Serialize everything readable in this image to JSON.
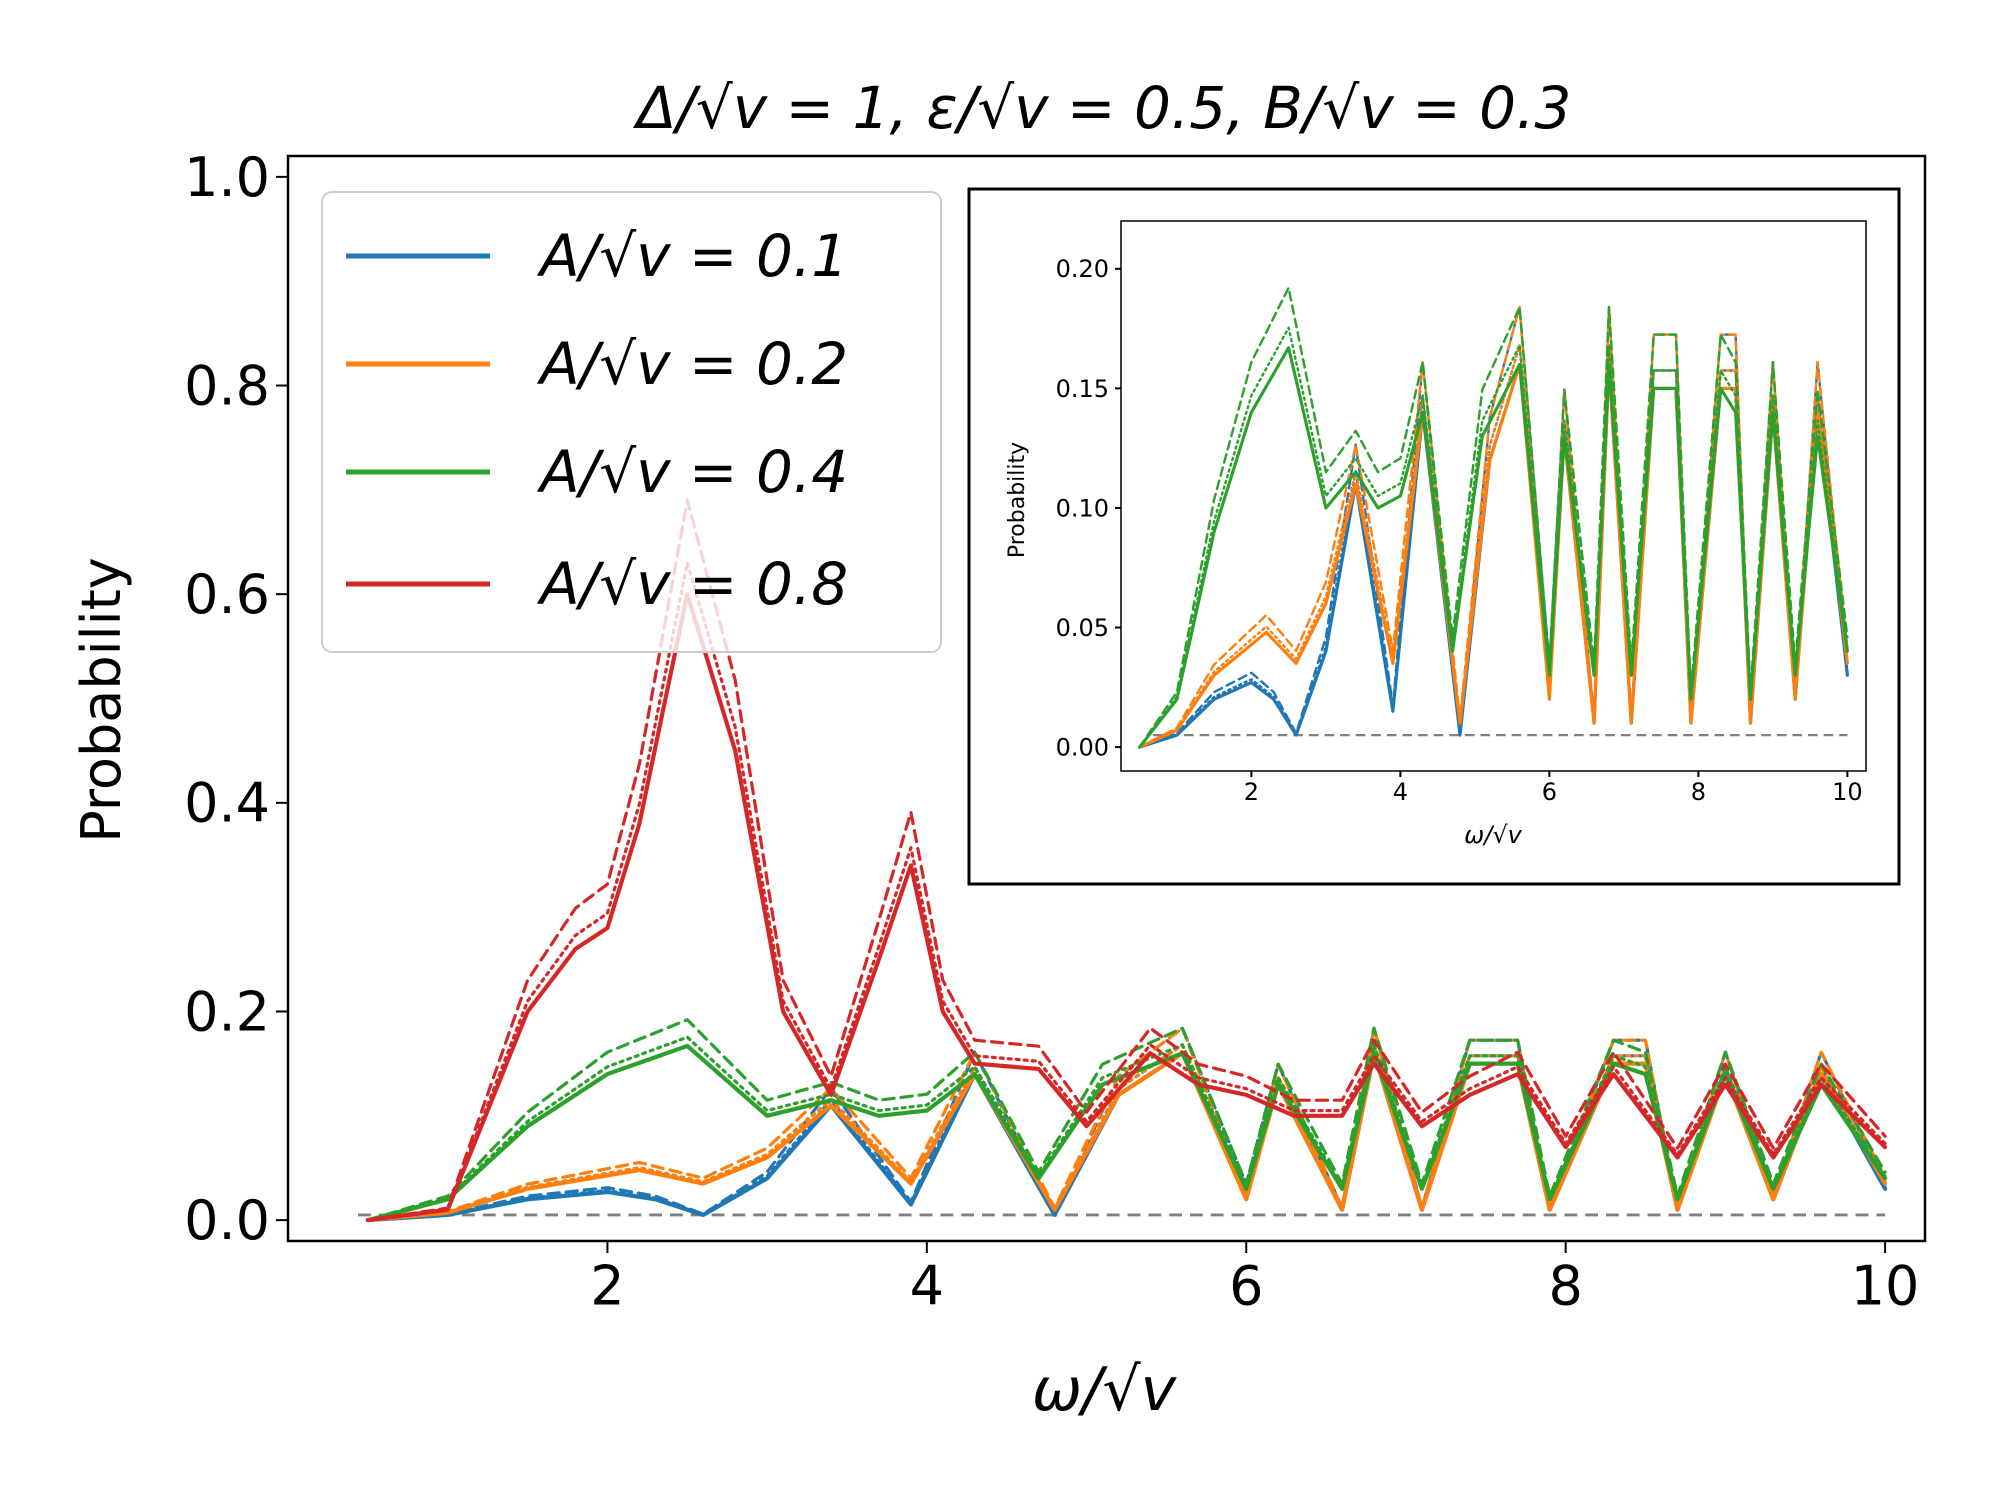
{
  "chart_data": {
    "type": "line",
    "title": "Δ/√v = 1, ε/√v = 0.5, B/√v = 0.3",
    "xlabel": "ω/√v",
    "ylabel": "Probability",
    "xlim": [
      0,
      10.25
    ],
    "ylim": [
      -0.02,
      1.02
    ],
    "xticks": [
      2,
      4,
      6,
      8,
      10
    ],
    "yticks": [
      0.0,
      0.2,
      0.4,
      0.6,
      0.8,
      1.0
    ],
    "ytick_labels": [
      "0.0",
      "0.2",
      "0.4",
      "0.6",
      "0.8",
      "1.0"
    ],
    "legend": {
      "placement": "upper-left",
      "entries": [
        {
          "label": "A/√v = 0.1",
          "color": "#1f77b4"
        },
        {
          "label": "A/√v = 0.2",
          "color": "#ff7f0e"
        },
        {
          "label": "A/√v = 0.4",
          "color": "#2ca02c"
        },
        {
          "label": "A/√v = 0.8",
          "color": "#d62728"
        }
      ]
    },
    "line_styles": [
      "solid",
      "dashed",
      "dotted"
    ],
    "series": [
      {
        "name": "A/√v = 0.1",
        "color": "#1f77b4",
        "style": "solid",
        "x": [
          0.5,
          1.0,
          1.5,
          2.0,
          2.3,
          2.6,
          3.0,
          3.4,
          3.9,
          4.3,
          4.8,
          5.2,
          5.6,
          6.0,
          6.2,
          6.6,
          6.8,
          7.1,
          7.4,
          7.7,
          7.9,
          8.3,
          8.5,
          8.7,
          9.0,
          9.3,
          9.6,
          10.0
        ],
        "y": [
          0.0,
          0.005,
          0.02,
          0.027,
          0.02,
          0.005,
          0.04,
          0.11,
          0.015,
          0.14,
          0.005,
          0.12,
          0.16,
          0.03,
          0.13,
          0.01,
          0.16,
          0.01,
          0.15,
          0.15,
          0.01,
          0.15,
          0.15,
          0.01,
          0.14,
          0.02,
          0.14,
          0.03
        ]
      },
      {
        "name": "A/√v = 0.2",
        "color": "#ff7f0e",
        "style": "solid",
        "x": [
          0.5,
          1.0,
          1.5,
          2.2,
          2.6,
          3.0,
          3.4,
          3.9,
          4.3,
          4.8,
          5.2,
          5.6,
          6.0,
          6.2,
          6.6,
          6.8,
          7.1,
          7.4,
          7.7,
          7.9,
          8.3,
          8.5,
          8.7,
          9.0,
          9.3,
          9.6,
          10.0
        ],
        "y": [
          0.0,
          0.007,
          0.03,
          0.048,
          0.035,
          0.06,
          0.11,
          0.035,
          0.14,
          0.01,
          0.12,
          0.16,
          0.02,
          0.13,
          0.01,
          0.16,
          0.01,
          0.15,
          0.15,
          0.01,
          0.15,
          0.15,
          0.01,
          0.14,
          0.02,
          0.14,
          0.035
        ]
      },
      {
        "name": "A/√v = 0.4",
        "color": "#2ca02c",
        "style": "solid",
        "x": [
          0.5,
          1.0,
          1.5,
          2.0,
          2.5,
          3.0,
          3.4,
          3.7,
          4.0,
          4.3,
          4.7,
          5.1,
          5.6,
          6.0,
          6.2,
          6.6,
          6.8,
          7.1,
          7.4,
          7.7,
          7.9,
          8.3,
          8.5,
          8.7,
          9.0,
          9.3,
          9.6,
          10.0
        ],
        "y": [
          0.0,
          0.02,
          0.09,
          0.14,
          0.167,
          0.1,
          0.115,
          0.1,
          0.105,
          0.14,
          0.04,
          0.13,
          0.16,
          0.03,
          0.13,
          0.03,
          0.16,
          0.03,
          0.15,
          0.15,
          0.02,
          0.15,
          0.14,
          0.02,
          0.14,
          0.03,
          0.13,
          0.04
        ]
      },
      {
        "name": "A/√v = 0.8",
        "color": "#d62728",
        "style": "solid",
        "x": [
          0.5,
          1.0,
          1.5,
          1.8,
          2.0,
          2.2,
          2.5,
          2.8,
          3.1,
          3.4,
          3.7,
          3.9,
          4.1,
          4.3,
          4.7,
          5.0,
          5.4,
          5.7,
          6.0,
          6.3,
          6.6,
          6.8,
          7.1,
          7.4,
          7.7,
          8.0,
          8.3,
          8.5,
          8.7,
          9.0,
          9.3,
          9.6,
          10.0
        ],
        "y": [
          0.0,
          0.01,
          0.2,
          0.26,
          0.28,
          0.38,
          0.6,
          0.45,
          0.2,
          0.12,
          0.25,
          0.34,
          0.2,
          0.15,
          0.145,
          0.09,
          0.16,
          0.13,
          0.12,
          0.1,
          0.1,
          0.15,
          0.09,
          0.12,
          0.14,
          0.07,
          0.14,
          0.1,
          0.06,
          0.13,
          0.06,
          0.13,
          0.07
        ]
      }
    ],
    "reference_line": {
      "y": 0.005,
      "color": "#808080",
      "style": "dashed"
    },
    "inset": {
      "xlabel": "ω/√v",
      "ylabel": "Probability",
      "xlim": [
        0.25,
        10.25
      ],
      "ylim": [
        -0.01,
        0.22
      ],
      "xticks": [
        2,
        4,
        6,
        8,
        10
      ],
      "yticks": [
        0.0,
        0.05,
        0.1,
        0.15,
        0.2
      ],
      "ytick_labels": [
        "0.00",
        "0.05",
        "0.10",
        "0.15",
        "0.20"
      ],
      "series_included": [
        "A/√v = 0.1",
        "A/√v = 0.2",
        "A/√v = 0.4"
      ]
    }
  }
}
